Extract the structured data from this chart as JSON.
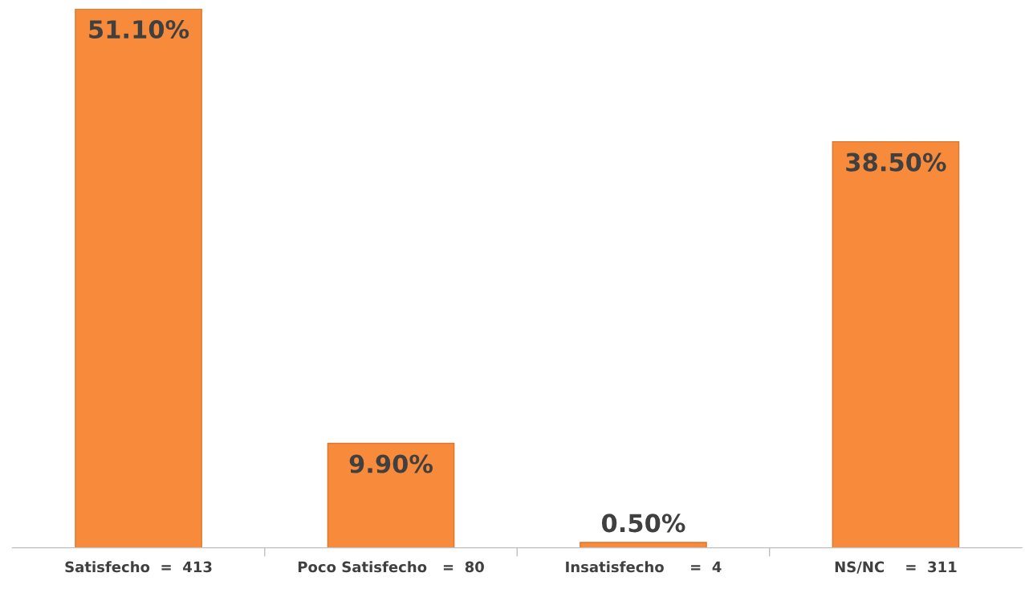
{
  "chart_data": {
    "type": "bar",
    "categories": [
      "Satisfecho  =  413",
      "Poco Satisfecho   =  80",
      "Insatisfecho     =  4",
      "NS/NC    =  311"
    ],
    "values": [
      51.1,
      9.9,
      0.5,
      38.5
    ],
    "value_labels": [
      "51.10%",
      "9.90%",
      "0.50%",
      "38.50%"
    ],
    "color": "#f78a3b",
    "grid": false,
    "legend": false
  }
}
